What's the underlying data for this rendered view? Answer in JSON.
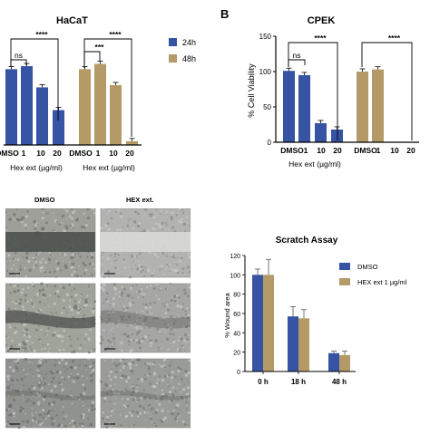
{
  "panels": {
    "a": {
      "title": "HaCaT"
    },
    "b": {
      "letter": "B",
      "title": "CPEK"
    },
    "d": {
      "title": "Scratch Assay"
    }
  },
  "micrographs": {
    "column_headers": [
      "DMSO",
      "HEX ext."
    ],
    "rows": 3
  },
  "colors": {
    "blue": "#3653A4",
    "tan": "#B49A66",
    "bracket": "#000000"
  },
  "chart_data": [
    {
      "type": "bar",
      "title": "HaCaT",
      "categories": [
        "DMSO",
        "1",
        "10",
        "20"
      ],
      "xlabel": "Hex ext (µg/ml)",
      "ylabel": "",
      "legend": [
        "24h",
        "48h"
      ],
      "groups": [
        {
          "name": "24h",
          "values": [
            100,
            104,
            76,
            46
          ]
        },
        {
          "name": "48h",
          "values": [
            100,
            107,
            79,
            5
          ]
        }
      ],
      "significance": [
        {
          "group": "24h",
          "label": "ns"
        },
        {
          "group": "24h",
          "label": "****"
        },
        {
          "group": "48h",
          "label": "***"
        },
        {
          "group": "48h",
          "label": "****"
        }
      ]
    },
    {
      "type": "bar",
      "title": "CPEK",
      "categories": [
        "DMSO",
        "1",
        "10",
        "20"
      ],
      "xlabel": "Hex ext (µg/ml)",
      "ylabel": "% Cell Viability",
      "ylim": [
        0,
        150
      ],
      "yticks": [
        "0",
        "50",
        "100",
        "150"
      ],
      "groups": [
        {
          "name": "24h",
          "values": [
            101,
            95,
            27,
            18
          ]
        },
        {
          "name": "48h",
          "values": [
            100,
            103,
            0,
            0
          ]
        }
      ],
      "significance": [
        {
          "group": "24h",
          "label": "ns"
        },
        {
          "group": "24h",
          "label": "****"
        },
        {
          "group": "48h",
          "label": "****"
        }
      ]
    },
    {
      "type": "bar",
      "title": "Scratch Assay",
      "categories": [
        "0 h",
        "18 h",
        "48 h"
      ],
      "xlabel": "",
      "ylabel": "% Wound area",
      "ylim": [
        0,
        120
      ],
      "yticks": [
        "0",
        "20",
        "40",
        "60",
        "80",
        "100",
        "120"
      ],
      "series": [
        {
          "name": "DMSO",
          "values": [
            100,
            57,
            19
          ],
          "errors": [
            6,
            10,
            2
          ]
        },
        {
          "name": "HEX ext 1 µg/ml",
          "values": [
            100,
            55,
            17
          ],
          "errors": [
            16,
            9,
            4
          ]
        }
      ],
      "legend": [
        "DMSO",
        "HEX ext 1 µg/ml"
      ]
    }
  ]
}
